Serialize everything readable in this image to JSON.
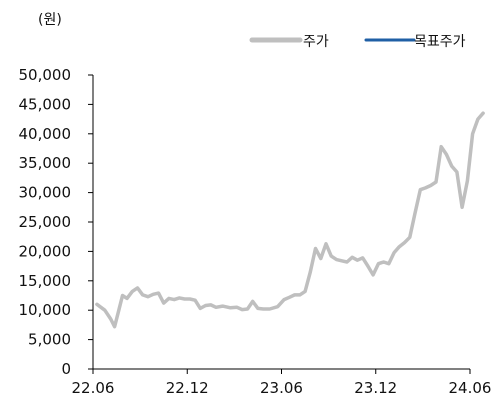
{
  "chart_data": {
    "type": "line",
    "unit_label": "(원)",
    "colors": {
      "price": "#bfbfbf",
      "target": "#1f5fa5",
      "axis": "#000000"
    },
    "x_ticks": [
      "22.06",
      "22.12",
      "23.06",
      "23.12",
      "24.06"
    ],
    "y_ticks": [
      "0",
      "5,000",
      "10,000",
      "15,000",
      "20,000",
      "25,000",
      "30,000",
      "35,000",
      "40,000",
      "45,000",
      "50,000"
    ],
    "xlim": [
      "2022-06",
      "2024-06"
    ],
    "ylim": [
      0,
      50000
    ],
    "grid": false,
    "legend_position": "top-right",
    "series": [
      {
        "name": "주가",
        "x": [
          "2022-06",
          "2022-06",
          "2022-07",
          "2022-07",
          "2022-07",
          "2022-07",
          "2022-08",
          "2022-08",
          "2022-08",
          "2022-09",
          "2022-09",
          "2022-09",
          "2022-10",
          "2022-10",
          "2022-10",
          "2022-11",
          "2022-11",
          "2022-11",
          "2022-12",
          "2022-12",
          "2022-12",
          "2023-01",
          "2023-01",
          "2023-01",
          "2023-02",
          "2023-02",
          "2023-03",
          "2023-03",
          "2023-03",
          "2023-04",
          "2023-04",
          "2023-04",
          "2023-05",
          "2023-05",
          "2023-06",
          "2023-06",
          "2023-06",
          "2023-07",
          "2023-07",
          "2023-07",
          "2023-08",
          "2023-08",
          "2023-08",
          "2023-09",
          "2023-09",
          "2023-09",
          "2023-10",
          "2023-10",
          "2023-10",
          "2023-11",
          "2023-11",
          "2023-11",
          "2023-12",
          "2023-12",
          "2023-12",
          "2024-01",
          "2024-01",
          "2024-01",
          "2024-02",
          "2024-02",
          "2024-02",
          "2024-03",
          "2024-03",
          "2024-03",
          "2024-04",
          "2024-04",
          "2024-04",
          "2024-05",
          "2024-05",
          "2024-05",
          "2024-06",
          "2024-06",
          "2024-06"
        ],
        "values": [
          11000,
          10000,
          8500,
          7200,
          9800,
          12500,
          12000,
          13200,
          13800,
          12600,
          12300,
          12700,
          12900,
          11200,
          12000,
          11800,
          12100,
          11900,
          11900,
          11700,
          10300,
          10800,
          10900,
          10500,
          10700,
          10400,
          10500,
          10100,
          10200,
          11500,
          10300,
          10200,
          10200,
          10600,
          11800,
          12200,
          12600,
          12600,
          13200,
          16500,
          20500,
          18800,
          21300,
          19200,
          18600,
          18400,
          18200,
          19000,
          18500,
          18900,
          17500,
          16000,
          17900,
          18200,
          17900,
          19800,
          20800,
          21500,
          22400,
          26500,
          30500,
          30800,
          31200,
          31800,
          37800,
          36500,
          34500,
          33500,
          27500,
          32000,
          40000,
          42500,
          43500
        ]
      },
      {
        "name": "목표주가",
        "x": [],
        "values": []
      }
    ]
  }
}
